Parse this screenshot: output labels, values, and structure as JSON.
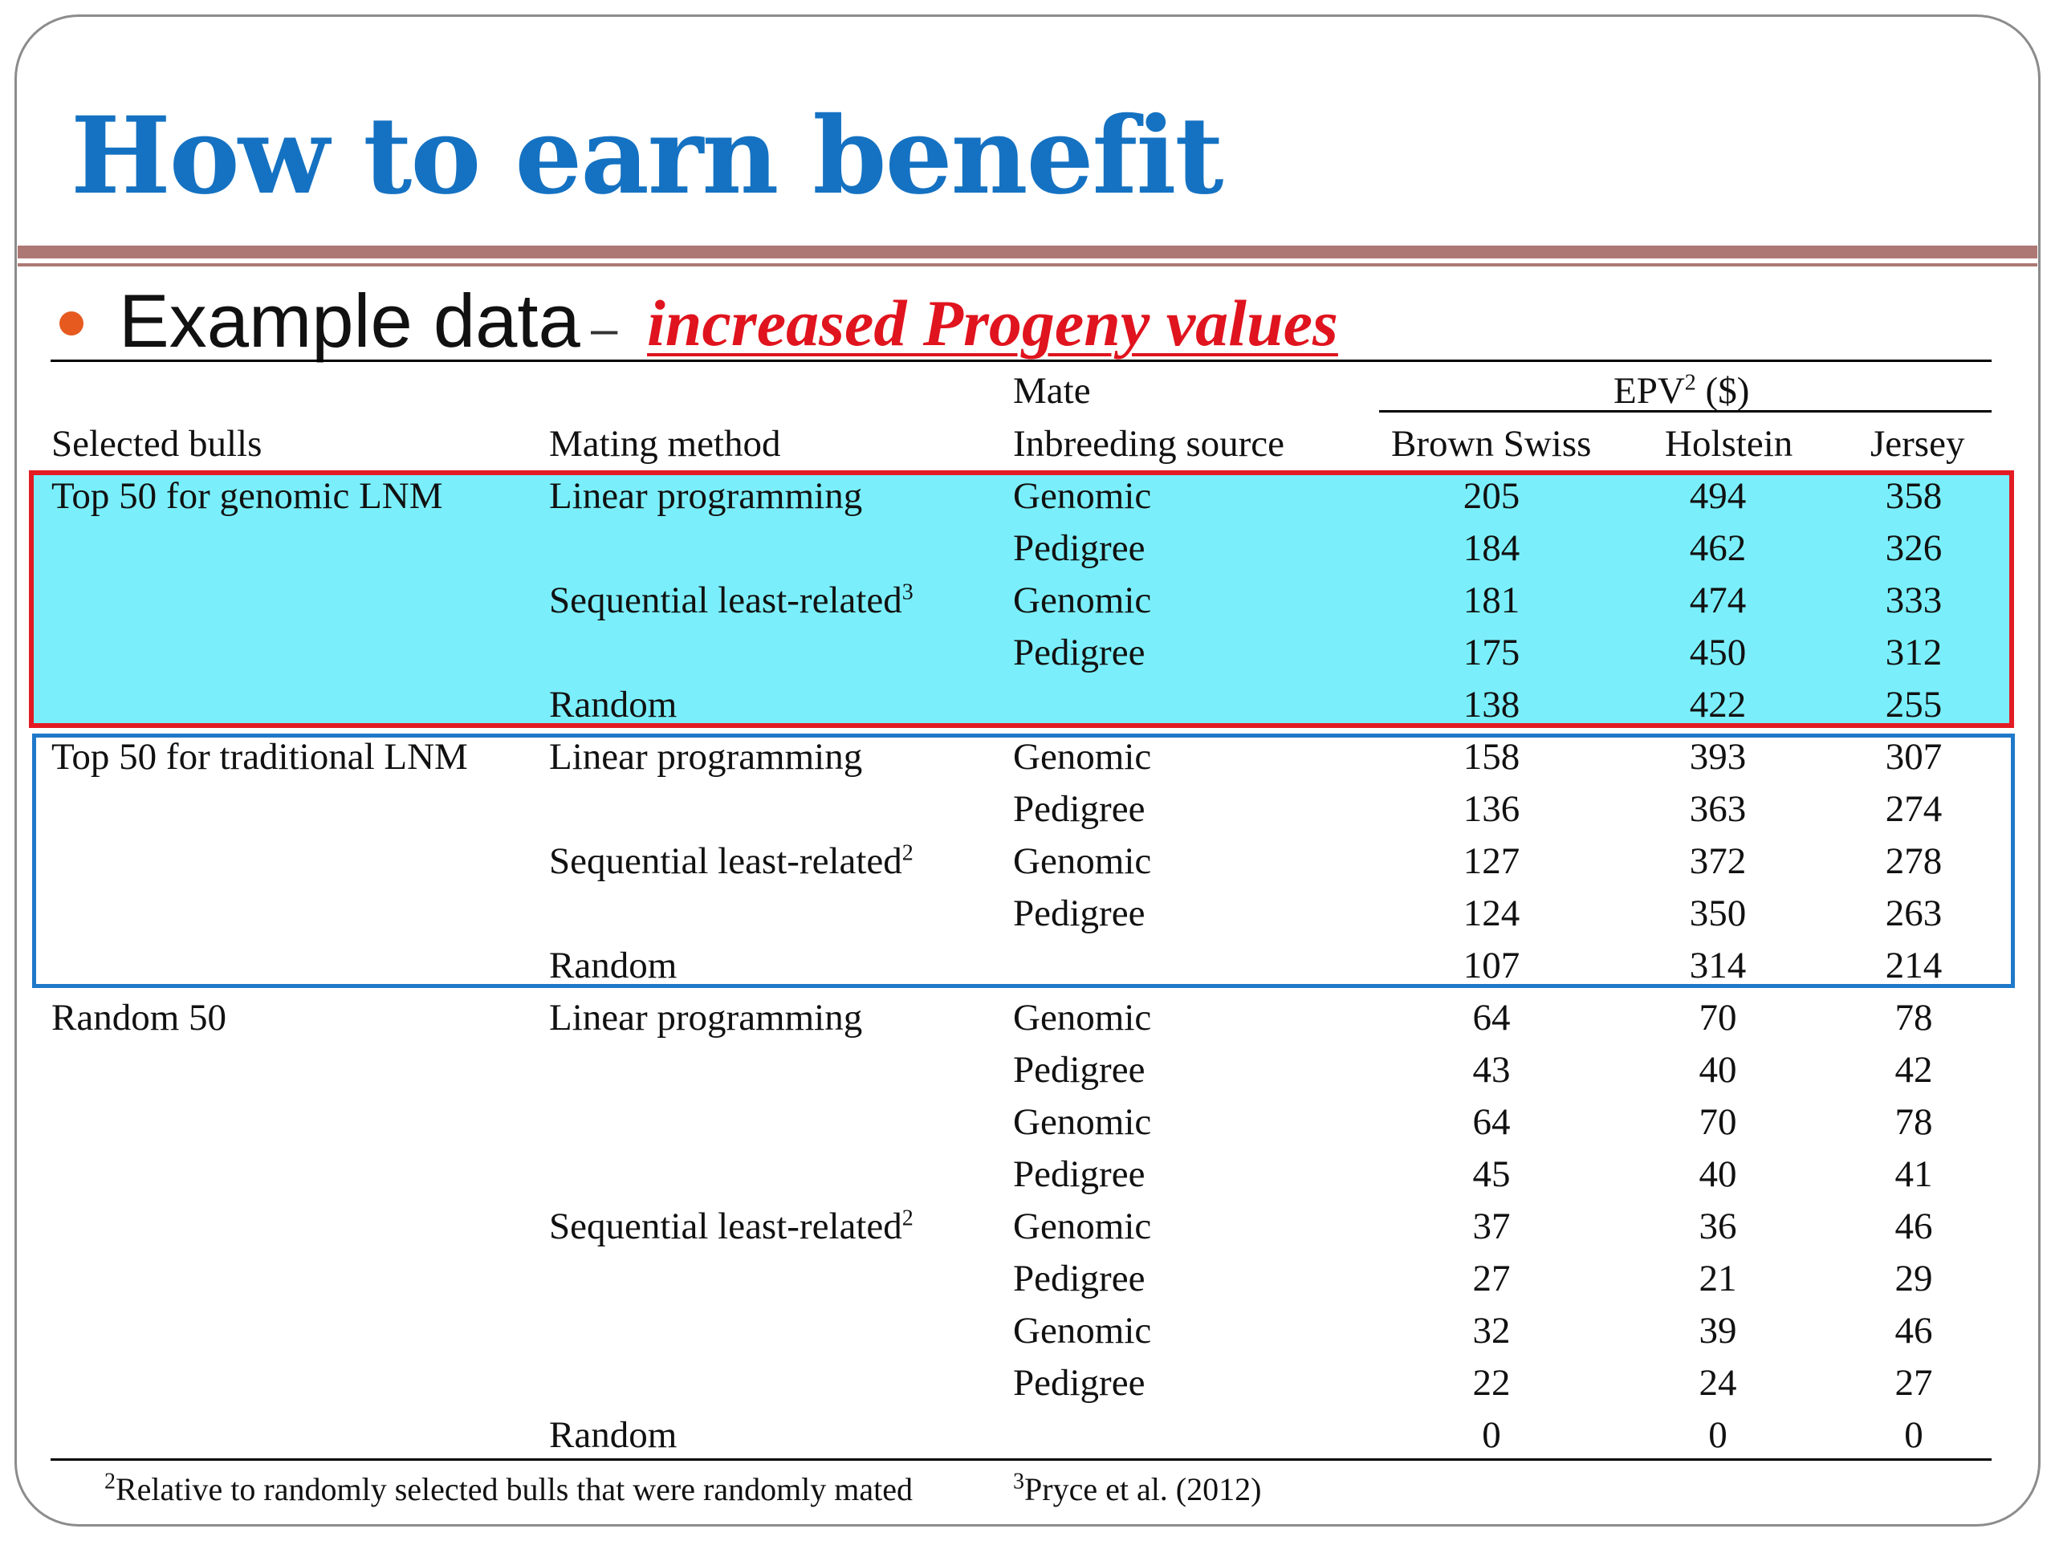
{
  "slide": {
    "title": "How to earn benefit",
    "bullet_text": "Example data",
    "bullet_dash": "–",
    "bullet_highlight": "increased Progeny values"
  },
  "colors": {
    "title": "#1572c2",
    "rule": "#ad7874",
    "bullet": "#e65a1f",
    "highlight": "#e0141e",
    "genomic_fill": "#7aeffb",
    "genomic_border": "#e31b23",
    "traditional_border": "#1f78c9"
  },
  "table": {
    "headers": {
      "selected_bulls": "Selected bulls",
      "mating_method": "Mating method",
      "mate_line1": "Mate",
      "mate_line2": "Inbreeding source",
      "epv_prefix": "EPV",
      "epv_sup": "2",
      "epv_suffix": " ($)",
      "breed_1": "Brown Swiss",
      "breed_2": "Holstein",
      "breed_3": "Jersey"
    },
    "rows": [
      {
        "bulls": "Top 50 for genomic LNM",
        "method": "Linear programming",
        "sup": "",
        "source": "Genomic",
        "bs": "205",
        "hol": "494",
        "jer": "358"
      },
      {
        "bulls": "",
        "method": "",
        "sup": "",
        "source": "Pedigree",
        "bs": "184",
        "hol": "462",
        "jer": "326"
      },
      {
        "bulls": "",
        "method": "Sequential least-related",
        "sup": "3",
        "source": "Genomic",
        "bs": "181",
        "hol": "474",
        "jer": "333"
      },
      {
        "bulls": "",
        "method": "",
        "sup": "",
        "source": "Pedigree",
        "bs": "175",
        "hol": "450",
        "jer": "312"
      },
      {
        "bulls": "",
        "method": "Random",
        "sup": "",
        "source": "",
        "bs": "138",
        "hol": "422",
        "jer": "255"
      },
      {
        "bulls": "Top 50 for traditional LNM",
        "method": "Linear programming",
        "sup": "",
        "source": "Genomic",
        "bs": "158",
        "hol": "393",
        "jer": "307"
      },
      {
        "bulls": "",
        "method": "",
        "sup": "",
        "source": "Pedigree",
        "bs": "136",
        "hol": "363",
        "jer": "274"
      },
      {
        "bulls": "",
        "method": "Sequential least-related",
        "sup": "2",
        "source": "Genomic",
        "bs": "127",
        "hol": "372",
        "jer": "278"
      },
      {
        "bulls": "",
        "method": "",
        "sup": "",
        "source": "Pedigree",
        "bs": "124",
        "hol": "350",
        "jer": "263"
      },
      {
        "bulls": "",
        "method": "Random",
        "sup": "",
        "source": "",
        "bs": "107",
        "hol": "314",
        "jer": "214"
      },
      {
        "bulls": "Random 50",
        "method": "Linear programming",
        "sup": "",
        "source": "Genomic",
        "bs": "64",
        "hol": "70",
        "jer": "78"
      },
      {
        "bulls": "",
        "method": "",
        "sup": "",
        "source": "Pedigree",
        "bs": "43",
        "hol": "40",
        "jer": "42"
      },
      {
        "bulls": "",
        "method": "",
        "sup": "",
        "source": "Genomic",
        "bs": "64",
        "hol": "70",
        "jer": "78"
      },
      {
        "bulls": "",
        "method": "",
        "sup": "",
        "source": "Pedigree",
        "bs": "45",
        "hol": "40",
        "jer": "41"
      },
      {
        "bulls": "",
        "method": "Sequential least-related",
        "sup": "2",
        "source": "Genomic",
        "bs": "37",
        "hol": "36",
        "jer": "46"
      },
      {
        "bulls": "",
        "method": "",
        "sup": "",
        "source": "Pedigree",
        "bs": "27",
        "hol": "21",
        "jer": "29"
      },
      {
        "bulls": "",
        "method": "",
        "sup": "",
        "source": "Genomic",
        "bs": "32",
        "hol": "39",
        "jer": "46"
      },
      {
        "bulls": "",
        "method": "",
        "sup": "",
        "source": "Pedigree",
        "bs": "22",
        "hol": "24",
        "jer": "27"
      },
      {
        "bulls": "",
        "method": "Random",
        "sup": "",
        "source": "",
        "bs": "0",
        "hol": "0",
        "jer": "0"
      }
    ]
  },
  "footnotes": {
    "note2_sup": "2",
    "note2_text": "Relative to randomly selected bulls that were randomly mated",
    "note3_sup": "3",
    "note3_text": "Pryce et al. (2012)"
  }
}
